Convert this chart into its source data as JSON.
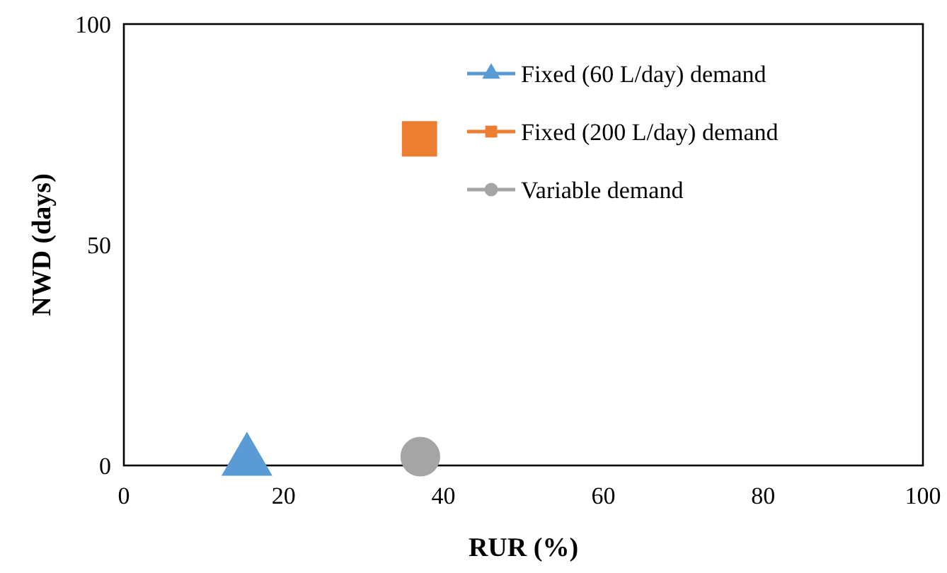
{
  "chart_data": {
    "type": "scatter",
    "xlabel": "RUR (%)",
    "ylabel": "NWD (days)",
    "xlim": [
      0,
      100
    ],
    "xticks": [
      0,
      20,
      40,
      60,
      80,
      100
    ],
    "ylim": [
      0,
      100
    ],
    "yticks": [
      0,
      50,
      100
    ],
    "grid": false,
    "legend": "top right",
    "series": [
      {
        "name": "Fixed (60 L/day) demand",
        "color": "#5b9bd5",
        "marker": "triangle",
        "x": [
          15.4
        ],
        "values": [
          1
        ]
      },
      {
        "name": "Fixed (200 L/day) demand",
        "color": "#ed7d31",
        "marker": "square",
        "x": [
          37
        ],
        "values": [
          74
        ]
      },
      {
        "name": "Variable demand",
        "color": "#a5a5a5",
        "marker": "circle",
        "x": [
          37.1
        ],
        "values": [
          2
        ]
      }
    ]
  }
}
